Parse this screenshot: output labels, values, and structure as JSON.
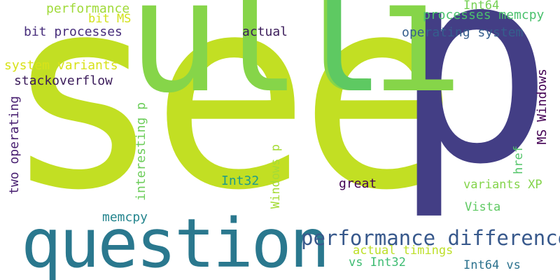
{
  "words": {
    "see": {
      "text": "see",
      "color": "#c2df23"
    },
    "p": {
      "text": "p",
      "color": "#433e85"
    },
    "ulli": {
      "text": "ulli",
      "color": "#86d549"
    },
    "l2": {
      "text": "l",
      "color": "#5ec962"
    },
    "question": {
      "text": "question",
      "color": "#2a788e"
    },
    "performance_differences": {
      "text": "performance differences",
      "color": "#38598c"
    },
    "performance": {
      "text": "performance",
      "color": "#a0da39"
    },
    "bit_ms": {
      "text": "bit MS",
      "color": "#d2e21b"
    },
    "bit_processes": {
      "text": "bit processes",
      "color": "#472d7b"
    },
    "actual": {
      "text": "actual",
      "color": "#3b1c5a"
    },
    "int64": {
      "text": "Int64",
      "color": "#75d054"
    },
    "processes_memcpy": {
      "text": "processes memcpy",
      "color": "#4ac16d"
    },
    "operating_system": {
      "text": "operating system",
      "color": "#355f8d"
    },
    "system_variants": {
      "text": "system variants",
      "color": "#d8e219"
    },
    "stackoverflow": {
      "text": "stackoverflow",
      "color": "#3b1c5a"
    },
    "two_operating": {
      "text": "two operating",
      "color": "#481f70"
    },
    "interesting_p": {
      "text": "interesting p",
      "color": "#6ccd5a"
    },
    "ms_windows": {
      "text": "MS Windows",
      "color": "#440154"
    },
    "href": {
      "text": "href",
      "color": "#52c569"
    },
    "windows_p": {
      "text": "Windows p",
      "color": "#a5db36"
    },
    "int32": {
      "text": "Int32",
      "color": "#1e9b8a"
    },
    "great": {
      "text": "great",
      "color": "#440154"
    },
    "variants_xp": {
      "text": "variants XP",
      "color": "#84d44b"
    },
    "vista": {
      "text": "Vista",
      "color": "#5ec962"
    },
    "memcpy": {
      "text": "memcpy",
      "color": "#25858e"
    },
    "actual_timings": {
      "text": "actual timings",
      "color": "#bddf26"
    },
    "vs_int32": {
      "text": "vs Int32",
      "color": "#3fbc73"
    },
    "int64_vs": {
      "text": "Int64 vs",
      "color": "#2c728e"
    }
  }
}
